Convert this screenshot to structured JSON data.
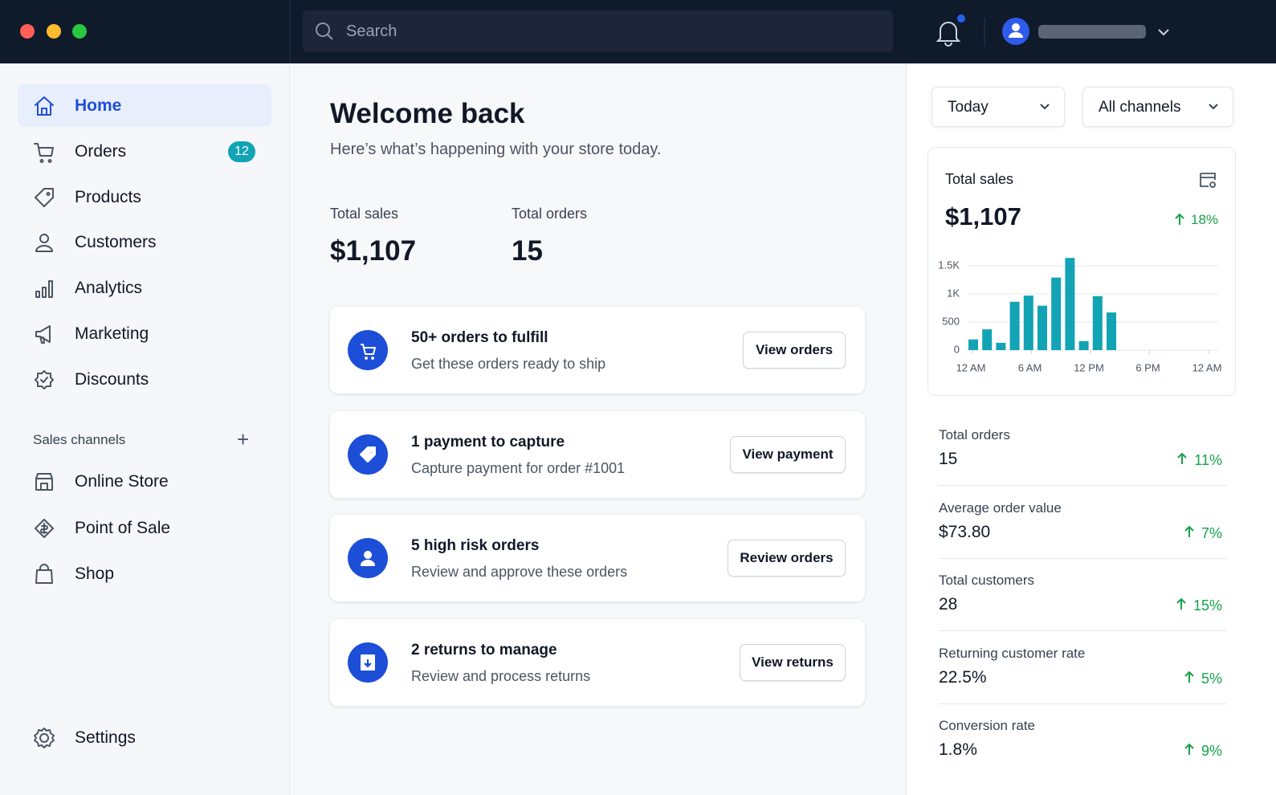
{
  "search_placeholder": "Search",
  "sidebar": {
    "nav": [
      {
        "label": "Home",
        "active": true
      },
      {
        "label": "Orders",
        "badge": 12
      },
      {
        "label": "Products"
      },
      {
        "label": "Customers"
      },
      {
        "label": "Analytics"
      },
      {
        "label": "Marketing"
      },
      {
        "label": "Discounts"
      }
    ],
    "section_title": "Sales channels",
    "channels": [
      "Online Store",
      "Point of Sale",
      "Shop"
    ],
    "settings": "Settings"
  },
  "main": {
    "title": "Welcome back",
    "subtitle": "Here’s what’s happening with your store today.",
    "stats": [
      {
        "label": "Total sales",
        "value": "$1,107"
      },
      {
        "label": "Total orders",
        "value": 15
      }
    ],
    "tasks": [
      {
        "title": "50+ orders to fulfill",
        "description": "Get these orders ready to ship",
        "button": "View orders"
      },
      {
        "title": "1 payment to capture",
        "description": "Capture payment for order #1001",
        "button": "View payment"
      },
      {
        "title": "5 high risk orders",
        "description": "Review and approve these orders",
        "button": "Review orders"
      },
      {
        "title": "2 returns to manage",
        "description": "Review and process returns",
        "button": "View returns"
      }
    ]
  },
  "filters": [
    "Today",
    "All channels"
  ],
  "sales_card": {
    "title": "Total sales",
    "value": "$1,107",
    "change": "18%",
    "chart": {
      "type": "bar",
      "color": "#12a3b5",
      "categories": [
        null,
        null,
        null,
        null,
        null,
        null,
        null,
        null,
        null,
        null,
        null
      ],
      "values": [
        190,
        370,
        130,
        860,
        970,
        790,
        1290,
        1640,
        160,
        960,
        670
      ],
      "ylim": [
        0,
        1700
      ],
      "yticks": [
        0,
        500,
        {
          "value": 1000,
          "label": "1K"
        },
        {
          "value": 1500,
          "label": "1.5K"
        }
      ],
      "xlabels": [
        "12 AM",
        "6 AM",
        "12 PM",
        "6 PM",
        "12 AM"
      ],
      "grid": true
    }
  },
  "metrics": [
    {
      "label": "Total orders",
      "value": 15,
      "change": "11%"
    },
    {
      "label": "Average order value",
      "value": "$73.80",
      "change": "7%"
    },
    {
      "label": "Total customers",
      "value": 28,
      "change": "15%"
    },
    {
      "label": "Returning customer rate",
      "value": "22.5%",
      "change": "5%"
    },
    {
      "label": "Conversion rate",
      "value": "1.8%",
      "change": "9%"
    }
  ]
}
